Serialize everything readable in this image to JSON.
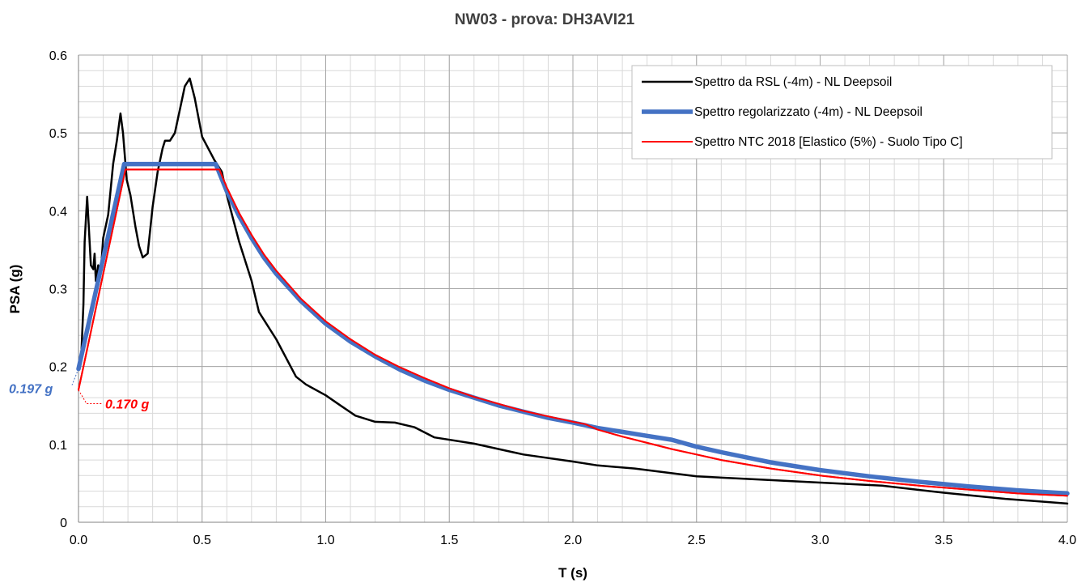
{
  "chart_data": {
    "type": "line",
    "title": "NW03 - prova: DH3AVI21",
    "xlabel": "T (s)",
    "ylabel": "PSA (g)",
    "xlim": [
      0,
      4
    ],
    "ylim": [
      0,
      0.6
    ],
    "x_ticks": [
      "0.0",
      "0.5",
      "1.0",
      "1.5",
      "2.0",
      "2.5",
      "3.0",
      "3.5",
      "4.0"
    ],
    "y_ticks": [
      "0",
      "0.1",
      "0.2",
      "0.3",
      "0.4",
      "0.5",
      "0.6"
    ],
    "grid": true,
    "legend_position": "top-right",
    "series": [
      {
        "name": "Spettro da RSL (-4m) - NL Deepsoil",
        "color": "#000000",
        "points": [
          [
            0.0,
            0.197
          ],
          [
            0.01,
            0.205
          ],
          [
            0.02,
            0.28
          ],
          [
            0.025,
            0.36
          ],
          [
            0.035,
            0.418
          ],
          [
            0.04,
            0.39
          ],
          [
            0.05,
            0.33
          ],
          [
            0.06,
            0.325
          ],
          [
            0.065,
            0.345
          ],
          [
            0.07,
            0.31
          ],
          [
            0.08,
            0.33
          ],
          [
            0.09,
            0.32
          ],
          [
            0.1,
            0.365
          ],
          [
            0.12,
            0.395
          ],
          [
            0.14,
            0.46
          ],
          [
            0.155,
            0.49
          ],
          [
            0.17,
            0.525
          ],
          [
            0.18,
            0.5
          ],
          [
            0.195,
            0.44
          ],
          [
            0.21,
            0.42
          ],
          [
            0.23,
            0.38
          ],
          [
            0.245,
            0.355
          ],
          [
            0.26,
            0.34
          ],
          [
            0.28,
            0.345
          ],
          [
            0.3,
            0.405
          ],
          [
            0.32,
            0.45
          ],
          [
            0.34,
            0.48
          ],
          [
            0.35,
            0.49
          ],
          [
            0.37,
            0.49
          ],
          [
            0.39,
            0.5
          ],
          [
            0.41,
            0.53
          ],
          [
            0.43,
            0.56
          ],
          [
            0.45,
            0.57
          ],
          [
            0.47,
            0.545
          ],
          [
            0.5,
            0.495
          ],
          [
            0.55,
            0.465
          ],
          [
            0.58,
            0.45
          ],
          [
            0.6,
            0.42
          ],
          [
            0.65,
            0.36
          ],
          [
            0.7,
            0.31
          ],
          [
            0.73,
            0.27
          ],
          [
            0.8,
            0.235
          ],
          [
            0.88,
            0.187
          ],
          [
            0.92,
            0.177
          ],
          [
            1.0,
            0.163
          ],
          [
            1.06,
            0.15
          ],
          [
            1.12,
            0.137
          ],
          [
            1.2,
            0.129
          ],
          [
            1.28,
            0.128
          ],
          [
            1.36,
            0.122
          ],
          [
            1.44,
            0.109
          ],
          [
            1.6,
            0.101
          ],
          [
            1.8,
            0.087
          ],
          [
            2.0,
            0.078
          ],
          [
            2.1,
            0.073
          ],
          [
            2.25,
            0.069
          ],
          [
            2.5,
            0.059
          ],
          [
            2.75,
            0.055
          ],
          [
            3.0,
            0.051
          ],
          [
            3.25,
            0.047
          ],
          [
            3.5,
            0.038
          ],
          [
            3.75,
            0.03
          ],
          [
            4.0,
            0.024
          ]
        ]
      },
      {
        "name": "Spettro regolarizzato (-4m) - NL Deepsoil",
        "color": "#4472C4",
        "points": [
          [
            0.0,
            0.197
          ],
          [
            0.185,
            0.46
          ],
          [
            0.555,
            0.46
          ],
          [
            0.6,
            0.425
          ],
          [
            0.65,
            0.393
          ],
          [
            0.7,
            0.365
          ],
          [
            0.75,
            0.34
          ],
          [
            0.8,
            0.319
          ],
          [
            0.9,
            0.284
          ],
          [
            1.0,
            0.255
          ],
          [
            1.1,
            0.232
          ],
          [
            1.2,
            0.213
          ],
          [
            1.3,
            0.196
          ],
          [
            1.4,
            0.182
          ],
          [
            1.5,
            0.17
          ],
          [
            1.6,
            0.16
          ],
          [
            1.7,
            0.15
          ],
          [
            1.8,
            0.142
          ],
          [
            1.9,
            0.134
          ],
          [
            2.0,
            0.128
          ],
          [
            2.1,
            0.121
          ],
          [
            2.2,
            0.116
          ],
          [
            2.3,
            0.111
          ],
          [
            2.4,
            0.106
          ],
          [
            2.5,
            0.097
          ],
          [
            2.6,
            0.09
          ],
          [
            2.8,
            0.077
          ],
          [
            3.0,
            0.067
          ],
          [
            3.2,
            0.059
          ],
          [
            3.4,
            0.052
          ],
          [
            3.6,
            0.046
          ],
          [
            3.8,
            0.041
          ],
          [
            4.0,
            0.037
          ]
        ]
      },
      {
        "name": "Spettro NTC 2018 [Elastico (5%) - Suolo Tipo C]",
        "color": "#FF0000",
        "points": [
          [
            0.0,
            0.17
          ],
          [
            0.19,
            0.453
          ],
          [
            0.57,
            0.453
          ],
          [
            0.6,
            0.43
          ],
          [
            0.65,
            0.397
          ],
          [
            0.7,
            0.369
          ],
          [
            0.75,
            0.344
          ],
          [
            0.8,
            0.323
          ],
          [
            0.9,
            0.287
          ],
          [
            1.0,
            0.258
          ],
          [
            1.1,
            0.235
          ],
          [
            1.2,
            0.215
          ],
          [
            1.3,
            0.199
          ],
          [
            1.4,
            0.185
          ],
          [
            1.5,
            0.172
          ],
          [
            1.6,
            0.161
          ],
          [
            1.7,
            0.152
          ],
          [
            1.8,
            0.143
          ],
          [
            1.9,
            0.136
          ],
          [
            2.0,
            0.129
          ],
          [
            2.05,
            0.126
          ],
          [
            2.1,
            0.119
          ],
          [
            2.2,
            0.11
          ],
          [
            2.3,
            0.102
          ],
          [
            2.4,
            0.094
          ],
          [
            2.5,
            0.087
          ],
          [
            2.6,
            0.08
          ],
          [
            2.8,
            0.069
          ],
          [
            3.0,
            0.06
          ],
          [
            3.2,
            0.053
          ],
          [
            3.4,
            0.047
          ],
          [
            3.6,
            0.042
          ],
          [
            3.8,
            0.037
          ],
          [
            4.0,
            0.034
          ]
        ]
      }
    ],
    "annotations": [
      {
        "label": "0.197 g",
        "value": 0.197,
        "color": "#4472C4"
      },
      {
        "label": "0.170 g",
        "value": 0.17,
        "color": "#FF0000"
      }
    ]
  }
}
